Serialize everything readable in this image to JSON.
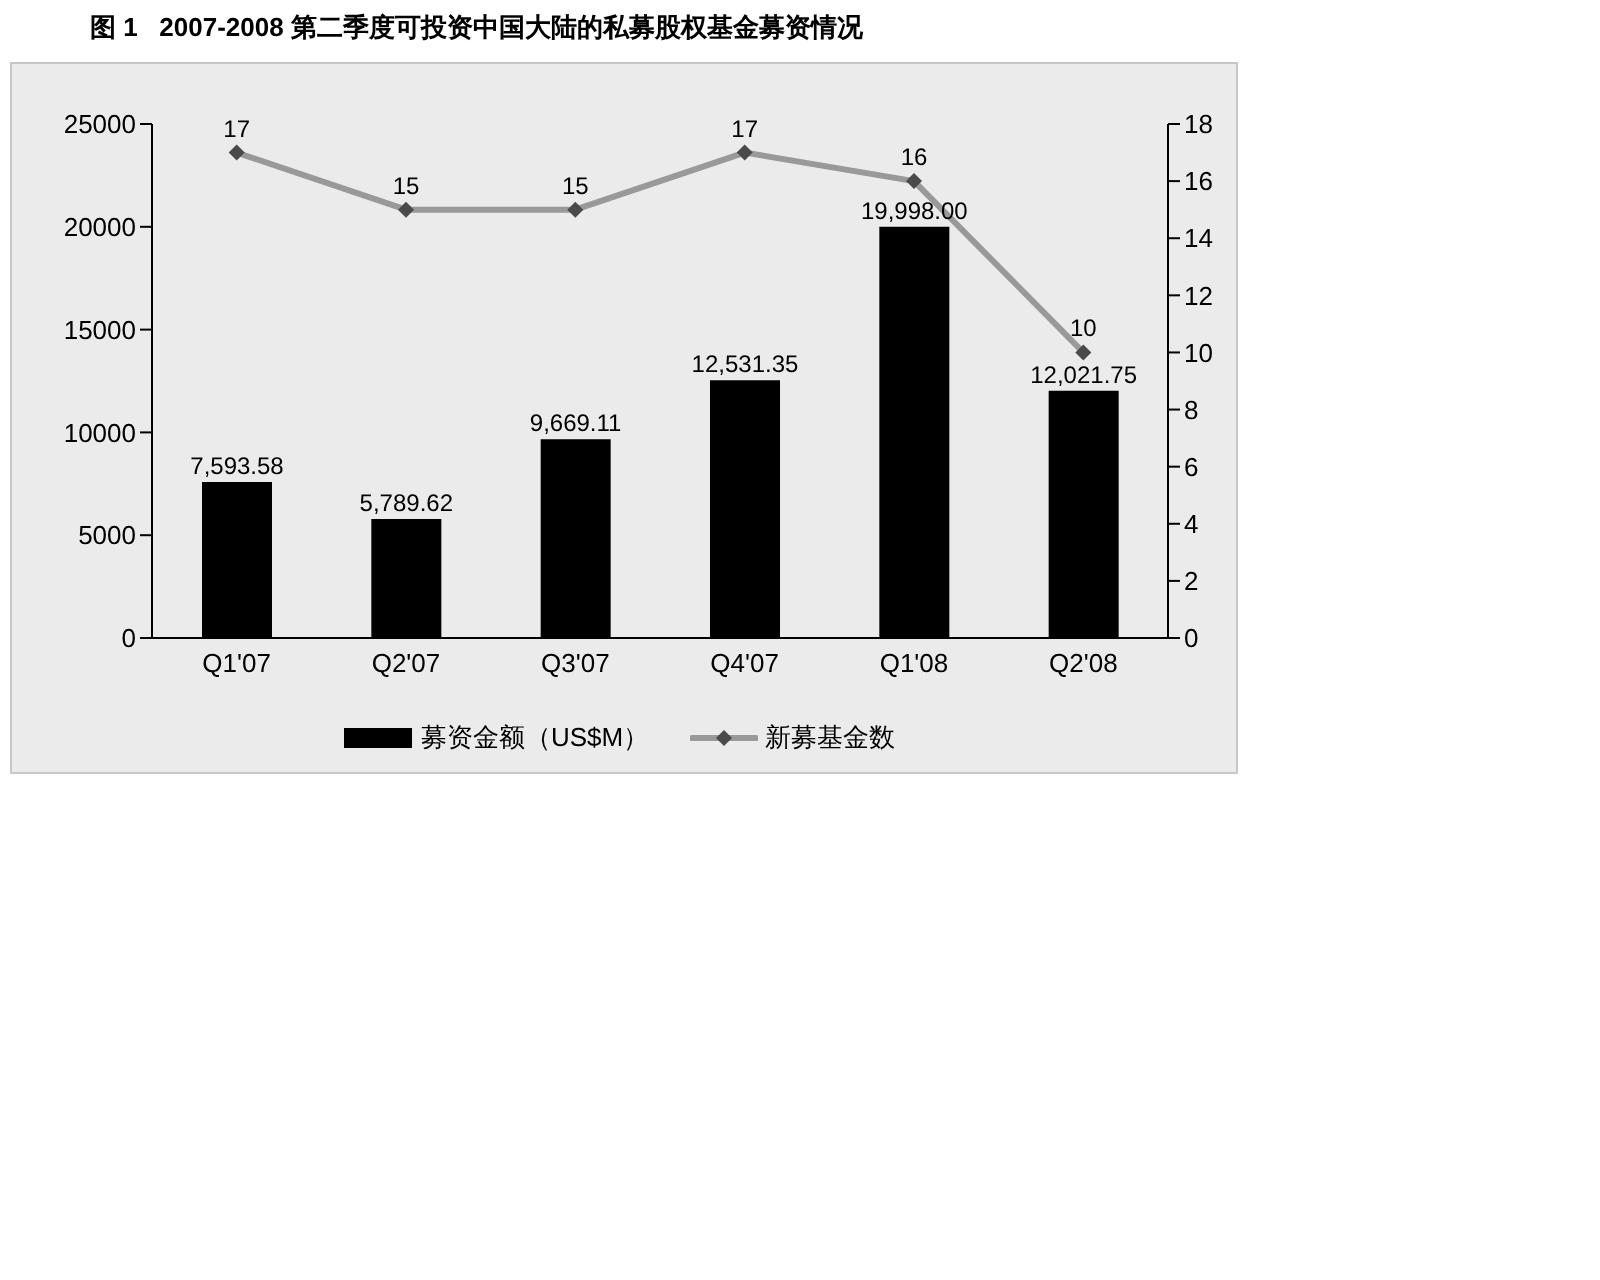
{
  "chart_data": {
    "type": "bar",
    "title": "图 1   2007-2008 第二季度可投资中国大陆的私募股权基金募资情况",
    "categories": [
      "Q1'07",
      "Q2'07",
      "Q3'07",
      "Q4'07",
      "Q1'08",
      "Q2'08"
    ],
    "series": [
      {
        "name": "募资金额（US$M）",
        "color": "#000000",
        "values": [
          7593.58,
          5789.62,
          9669.11,
          12531.35,
          19998.0,
          12021.75
        ],
        "value_labels": [
          "7,593.58",
          "5,789.62",
          "9,669.11",
          "12,531.35",
          "19,998.00",
          "12,021.75"
        ]
      },
      {
        "name": "新募基金数",
        "type": "line",
        "axis": "y2",
        "color": "#999999",
        "values": [
          17,
          15,
          15,
          17,
          16,
          10
        ],
        "value_labels": [
          "17",
          "15",
          "15",
          "17",
          "16",
          "10"
        ]
      }
    ],
    "ylim": [
      0,
      25000
    ],
    "yticks": [
      0,
      5000,
      10000,
      15000,
      20000,
      25000
    ],
    "y2lim": [
      0,
      18
    ],
    "y2ticks": [
      0,
      2,
      4,
      6,
      8,
      10,
      12,
      14,
      16,
      18
    ],
    "marker": "diamond",
    "legend": "bottom"
  }
}
